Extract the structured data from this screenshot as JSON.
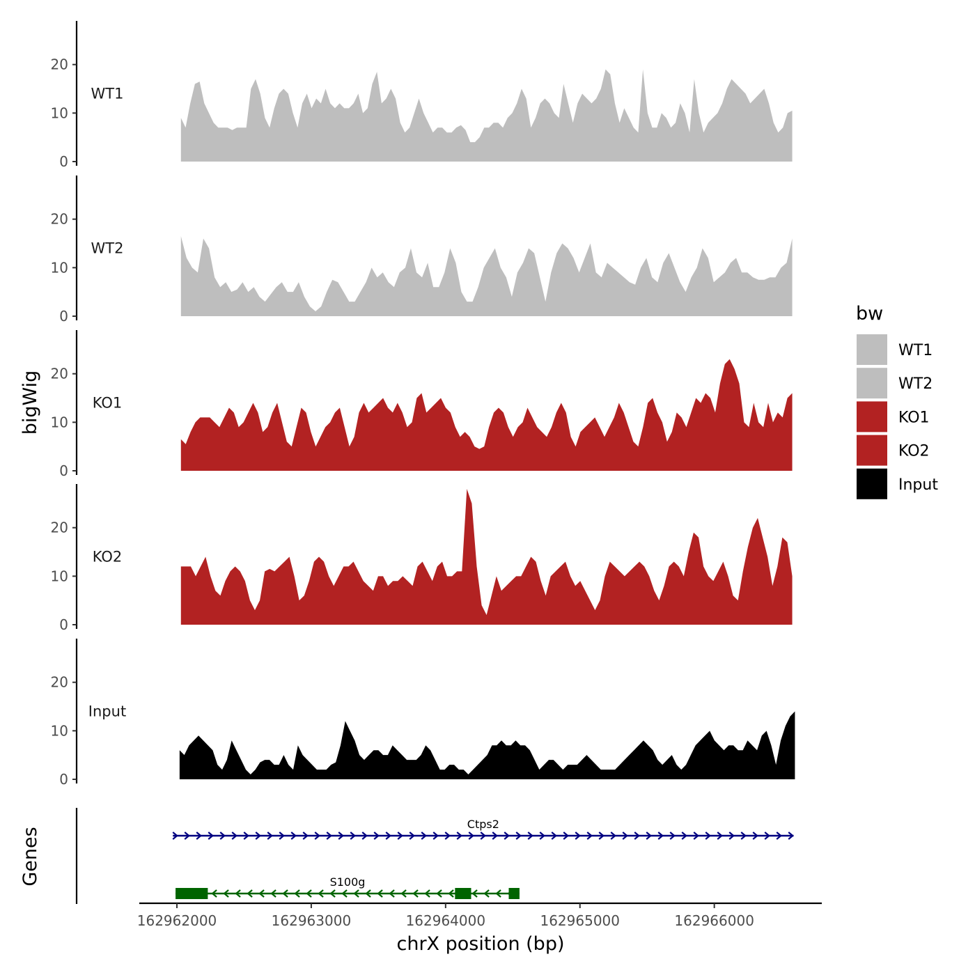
{
  "chart_data": {
    "type": "area",
    "xlabel": "chrX position (bp)",
    "ylabel": "bigWig",
    "gene_panel_label": "Genes",
    "xlim": [
      162961720,
      162966800
    ],
    "ylim": [
      0,
      29
    ],
    "x_ticks": [
      {
        "value": 162962000,
        "label": "162962000"
      },
      {
        "value": 162963000,
        "label": "162963000"
      },
      {
        "value": 162964000,
        "label": "162964000"
      },
      {
        "value": 162965000,
        "label": "162965000"
      },
      {
        "value": 162966000,
        "label": "162966000"
      }
    ],
    "y_ticks": [
      {
        "value": 0,
        "label": "0"
      },
      {
        "value": 10,
        "label": "10"
      },
      {
        "value": 20,
        "label": "20"
      }
    ],
    "legend": {
      "title": "bw",
      "entries": [
        {
          "label": "WT1",
          "color": "#bebebe"
        },
        {
          "label": "WT2",
          "color": "#bebebe"
        },
        {
          "label": "KO1",
          "color": "#b22222"
        },
        {
          "label": "KO2",
          "color": "#b22222"
        },
        {
          "label": "Input",
          "color": "#000000"
        }
      ]
    },
    "series": [
      {
        "name": "WT1",
        "color": "#bebebe",
        "x_start": 162962030,
        "x_end": 162966580,
        "values": [
          9,
          7,
          12,
          16,
          16.5,
          12,
          10,
          8,
          7,
          7,
          7,
          6.5,
          7,
          7,
          7,
          15,
          17,
          14,
          9,
          7,
          11,
          14,
          15,
          14,
          10,
          7,
          12,
          14,
          11,
          13,
          12,
          15,
          12,
          11,
          12,
          11,
          11,
          12,
          14,
          10,
          11,
          16,
          18.5,
          12,
          13,
          15,
          13,
          8,
          6,
          7,
          10,
          13,
          10,
          8,
          6,
          7,
          7,
          6,
          6,
          7,
          7.5,
          6.5,
          4,
          4,
          5,
          7,
          7,
          8,
          8,
          7,
          9,
          10,
          12,
          15,
          13,
          7,
          9,
          12,
          13,
          12,
          10,
          9,
          16,
          12,
          8,
          12,
          14,
          13,
          12,
          13,
          15,
          19,
          18,
          12,
          8,
          11,
          9,
          7,
          6,
          19,
          10,
          7,
          7,
          10,
          9,
          7,
          8,
          12,
          10,
          6,
          17,
          10,
          6,
          8,
          9,
          10,
          12,
          15,
          17,
          16,
          15,
          14,
          12,
          13,
          14,
          15,
          12,
          8,
          6,
          7,
          10,
          10.5
        ]
      },
      {
        "name": "WT2",
        "color": "#bebebe",
        "x_start": 162962030,
        "x_end": 162966580,
        "values": [
          16.5,
          12,
          10,
          9,
          16,
          14,
          8,
          6,
          7,
          5,
          5.5,
          7,
          5,
          6,
          4,
          3,
          4.5,
          6,
          7,
          5,
          5,
          7,
          4,
          2,
          1,
          2,
          5,
          7.5,
          7,
          5,
          3,
          3,
          5,
          7,
          10,
          8,
          9,
          7,
          6,
          9,
          10,
          14,
          9,
          8,
          11,
          6,
          6,
          9,
          14,
          11,
          5,
          3,
          3,
          6,
          10,
          12,
          14,
          10,
          8,
          4,
          9,
          11,
          14,
          13,
          8,
          3,
          9,
          13,
          15,
          14,
          12,
          9,
          12,
          15,
          9,
          8,
          11,
          10,
          9,
          8,
          7,
          6.5,
          10,
          12,
          8,
          7,
          11,
          13,
          10,
          7,
          5,
          8,
          10,
          14,
          12,
          7,
          8,
          9,
          11,
          12,
          9,
          9,
          8,
          7.5,
          7.5,
          8,
          8,
          10,
          11,
          16
        ]
      },
      {
        "name": "KO1",
        "color": "#b22222",
        "x_start": 162962030,
        "x_end": 162966580,
        "values": [
          6.5,
          5.5,
          8,
          10,
          11,
          11,
          11,
          10,
          9,
          11,
          13,
          12,
          9,
          10,
          12,
          14,
          12,
          8,
          9,
          12,
          14,
          10,
          6,
          5,
          9,
          13,
          12,
          8,
          5,
          7,
          9,
          10,
          12,
          13,
          9,
          5,
          7,
          12,
          14,
          12,
          13,
          14,
          15,
          13,
          12,
          14,
          12,
          9,
          10,
          15,
          16,
          12,
          13,
          14,
          15,
          13,
          12,
          9,
          7,
          8,
          7,
          5,
          4.5,
          5,
          9,
          12,
          13,
          12,
          9,
          7,
          9,
          10,
          13,
          11,
          9,
          8,
          7,
          9,
          12,
          14,
          12,
          7,
          5,
          8,
          9,
          10,
          11,
          9,
          7,
          9,
          11,
          14,
          12,
          9,
          6,
          5,
          9,
          14,
          15,
          12,
          10,
          6,
          8,
          12,
          11,
          9,
          12,
          15,
          14,
          16,
          15,
          12,
          18,
          22,
          23,
          21,
          18,
          10,
          9,
          14,
          10,
          9,
          14,
          10,
          12,
          11,
          15,
          16
        ]
      },
      {
        "name": "KO2",
        "color": "#b22222",
        "x_start": 162962030,
        "x_end": 162966580,
        "values": [
          12,
          12,
          12,
          10,
          12,
          14,
          10,
          7,
          6,
          9,
          11,
          12,
          11,
          9,
          5,
          3,
          5,
          11,
          11.5,
          11,
          12,
          13,
          14,
          10,
          5,
          6,
          9,
          13,
          14,
          13,
          10,
          8,
          10,
          12,
          12,
          13,
          11,
          9,
          8,
          7,
          10,
          10,
          8,
          9,
          9,
          10,
          9,
          8,
          12,
          13,
          11,
          9,
          12,
          13,
          10,
          10,
          11,
          11,
          28,
          25,
          12,
          4,
          2,
          6,
          10,
          7,
          8,
          9,
          10,
          10,
          12,
          14,
          13,
          9,
          6,
          10,
          11,
          12,
          13,
          10,
          8,
          9,
          7,
          5,
          3,
          5,
          10,
          13,
          12,
          11,
          10,
          11,
          12,
          13,
          12,
          10,
          7,
          5,
          8,
          12,
          13,
          12,
          10,
          15,
          19,
          18,
          12,
          10,
          9,
          11,
          13,
          10,
          6,
          5,
          11,
          16,
          20,
          22,
          18,
          14,
          8,
          12,
          18,
          17,
          10
        ]
      },
      {
        "name": "Input",
        "color": "#000000",
        "x_start": 162962020,
        "x_end": 162966600,
        "values": [
          6,
          5,
          7,
          8,
          9,
          8,
          7,
          6,
          3,
          2,
          4,
          8,
          6,
          4,
          2,
          1,
          2,
          3.5,
          4,
          4,
          3,
          3,
          5,
          3,
          2,
          7,
          5,
          4,
          3,
          2,
          2,
          2,
          3,
          3.5,
          7,
          12,
          10,
          8,
          5,
          4,
          5,
          6,
          6,
          5,
          5,
          7,
          6,
          5,
          4,
          4,
          4,
          5,
          7,
          6,
          4,
          2,
          2,
          3,
          3,
          2,
          2,
          1,
          2,
          3,
          4,
          5,
          7,
          7,
          8,
          7,
          7,
          8,
          7,
          7,
          6,
          4,
          2,
          3,
          4,
          4,
          3,
          2,
          3,
          3,
          3,
          4,
          5,
          4,
          3,
          2,
          2,
          2,
          2,
          3,
          4,
          5,
          6,
          7,
          8,
          7,
          6,
          4,
          3,
          4,
          5,
          3,
          2,
          3,
          5,
          7,
          8,
          9,
          10,
          8,
          7,
          6,
          7,
          7,
          6,
          6,
          8,
          7,
          6,
          9,
          10,
          7,
          3,
          8,
          11,
          13,
          14
        ]
      }
    ],
    "genes": [
      {
        "name": "Ctps2",
        "strand": "+",
        "color": "#000080",
        "start": 162961970,
        "end": 162966590
      },
      {
        "name": "S100g",
        "strand": "-",
        "color": "#006400",
        "start": 162961990,
        "end": 162964550,
        "exons": [
          [
            162961990,
            162962230
          ],
          [
            162964070,
            162964190
          ],
          [
            162964470,
            162964550
          ]
        ]
      }
    ]
  }
}
